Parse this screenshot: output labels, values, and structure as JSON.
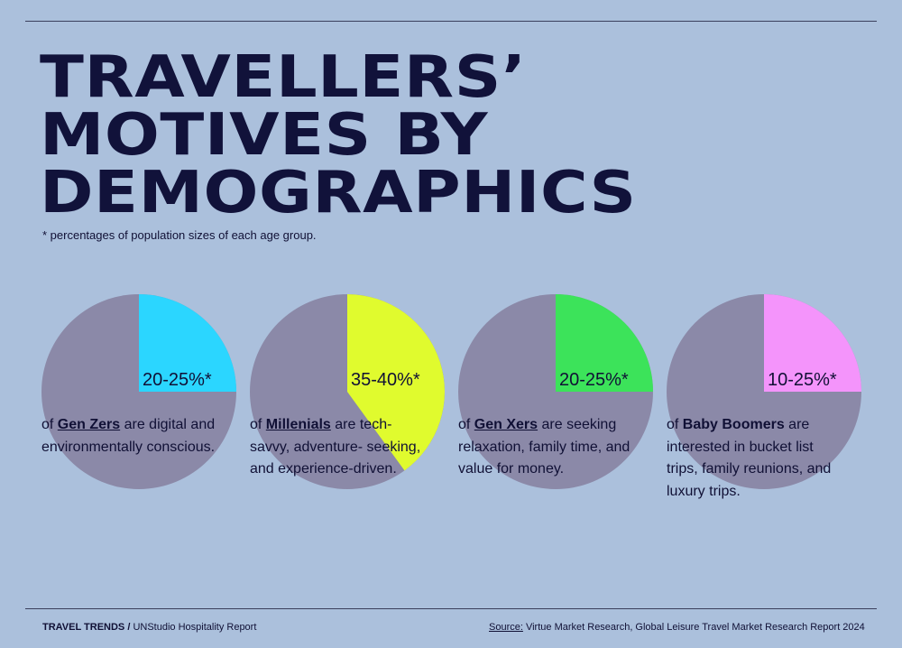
{
  "title": {
    "line1": "TRAVELLERS’",
    "line2": "MOTIVES BY",
    "line3": "DEMOGRAPHICS"
  },
  "note": "* percentages of population sizes of each age group.",
  "colors": {
    "background": "#abc0dc",
    "pie_base": "#8b89a8",
    "text": "#101035"
  },
  "chart_data": [
    {
      "type": "pie",
      "label": "20-25%*",
      "range": [
        20,
        25
      ],
      "slice_fraction": 0.25,
      "color": "#2bd6ff",
      "prefix": "of ",
      "group": "Gen Zers",
      "group_underlined": true,
      "suffix": " are digital and environmentally conscious."
    },
    {
      "type": "pie",
      "label": "35-40%*",
      "range": [
        35,
        40
      ],
      "slice_fraction": 0.4,
      "color": "#e0fb2e",
      "prefix": "of ",
      "group": "Millenials",
      "group_underlined": true,
      "suffix": " are tech- savvy, adventure- seeking, and experience-driven."
    },
    {
      "type": "pie",
      "label": "20-25%*",
      "range": [
        20,
        25
      ],
      "slice_fraction": 0.25,
      "color": "#3ce35a",
      "prefix": "of ",
      "group": "Gen Xers",
      "group_underlined": true,
      "suffix": " are seeking relaxation, family time, and value for money."
    },
    {
      "type": "pie",
      "label": "10-25%*",
      "range": [
        10,
        25
      ],
      "slice_fraction": 0.25,
      "color": "#f494fb",
      "prefix": "of ",
      "group": "Baby Boomers",
      "group_underlined": false,
      "suffix": " are interested in bucket list trips, family reunions, and luxury trips."
    }
  ],
  "footer": {
    "brand": "TRAVEL TRENDS /",
    "report": " UNStudio Hospitality Report",
    "source_label": "Source:",
    "source_text": " Virtue Market Research, Global Leisure Travel Market Research Report 2024"
  }
}
